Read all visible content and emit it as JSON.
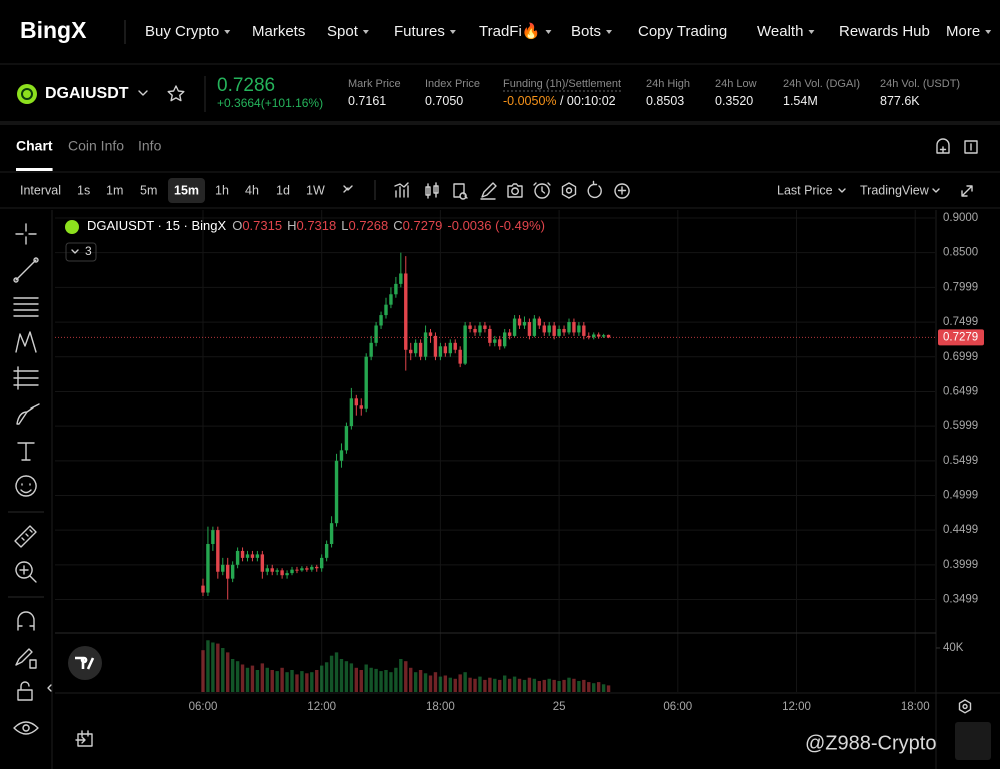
{
  "nav": {
    "logo": "BingX",
    "items": [
      {
        "label": "Buy Crypto",
        "menu": true
      },
      {
        "label": "Markets",
        "menu": false
      },
      {
        "label": "Spot",
        "menu": true
      },
      {
        "label": "Futures",
        "menu": true
      },
      {
        "label": "TradFi🔥",
        "menu": true
      },
      {
        "label": "Bots",
        "menu": true
      },
      {
        "label": "Copy Trading",
        "menu": false
      },
      {
        "label": "Wealth",
        "menu": true
      },
      {
        "label": "Rewards Hub",
        "menu": false
      },
      {
        "label": "More",
        "menu": true
      }
    ]
  },
  "ticker": {
    "symbol": "DGAIUSDT",
    "price": "0.7286",
    "change": "+0.3664(+101.16%)",
    "stats": [
      {
        "label": "Mark Price",
        "value": "0.7161"
      },
      {
        "label": "Index Price",
        "value": "0.7050"
      },
      {
        "label": "Funding (1h)/Settlement",
        "value": "-0.0050%",
        "extra": " / 00:10:02"
      },
      {
        "label": "24h High",
        "value": "0.8503"
      },
      {
        "label": "24h Low",
        "value": "0.3520"
      },
      {
        "label": "24h Vol. (DGAI)",
        "value": "1.54M"
      },
      {
        "label": "24h Vol. (USDT)",
        "value": "877.6K"
      }
    ]
  },
  "tabs": {
    "items": [
      "Chart",
      "Coin Info",
      "Info"
    ],
    "active": 0
  },
  "toolbar": {
    "interval_label": "Interval",
    "intervals": [
      "1s",
      "1m",
      "5m",
      "15m",
      "1h",
      "4h",
      "1d",
      "1W"
    ],
    "active": 3,
    "price_source": "Last Price",
    "view": "TradingView"
  },
  "watermark": "@Z988-Crypto",
  "chart_data": {
    "type": "candlestick",
    "legend": {
      "title": "DGAIUSDT · 15 · BingX",
      "ohlc": [
        {
          "label": "O",
          "value": "0.7315"
        },
        {
          "label": "H",
          "value": "0.7318"
        },
        {
          "label": "L",
          "value": "0.7268"
        },
        {
          "label": "C",
          "value": "0.7279"
        }
      ],
      "change": "-0.0036 (-0.49%)",
      "indicators": "3"
    },
    "x": [
      6,
      6.25,
      6.5,
      6.75,
      7,
      7.25,
      7.5,
      7.75,
      8,
      8.25,
      8.5,
      8.75,
      9,
      9.25,
      9.5,
      9.75,
      10,
      10.25,
      10.5,
      10.75,
      11,
      11.25,
      11.5,
      11.75,
      12,
      12.25,
      12.5,
      12.75,
      13,
      13.25,
      13.5,
      13.75,
      14,
      14.25,
      14.5,
      14.75,
      15,
      15.25,
      15.5,
      15.75,
      16,
      16.25,
      16.5,
      16.75,
      17,
      17.25,
      17.5,
      17.75,
      18,
      18.25,
      18.5,
      18.75,
      19,
      19.25,
      19.5,
      19.75,
      20,
      20.25,
      20.5,
      20.75,
      21,
      21.25,
      21.5,
      21.75,
      22,
      22.25,
      22.5,
      22.75,
      23,
      23.25,
      23.5,
      23.75,
      24,
      24.25,
      24.5,
      24.75,
      25,
      25.25,
      25.5,
      25.75,
      26,
      26.25,
      26.5
    ],
    "open": [
      0.37,
      0.36,
      0.43,
      0.45,
      0.39,
      0.4,
      0.38,
      0.4,
      0.42,
      0.41,
      0.415,
      0.41,
      0.415,
      0.39,
      0.395,
      0.39,
      0.392,
      0.385,
      0.388,
      0.393,
      0.392,
      0.395,
      0.393,
      0.397,
      0.395,
      0.41,
      0.43,
      0.46,
      0.55,
      0.565,
      0.6,
      0.64,
      0.63,
      0.625,
      0.7,
      0.72,
      0.745,
      0.76,
      0.775,
      0.79,
      0.805,
      0.82,
      0.71,
      0.705,
      0.72,
      0.7,
      0.735,
      0.73,
      0.7,
      0.715,
      0.705,
      0.72,
      0.71,
      0.69,
      0.745,
      0.74,
      0.735,
      0.745,
      0.74,
      0.72,
      0.725,
      0.715,
      0.735,
      0.73,
      0.755,
      0.745,
      0.75,
      0.73,
      0.755,
      0.745,
      0.735,
      0.745,
      0.73,
      0.74,
      0.735,
      0.75,
      0.735,
      0.745,
      0.73,
      0.728,
      0.732,
      0.729,
      0.7315
    ],
    "high": [
      0.38,
      0.455,
      0.455,
      0.455,
      0.41,
      0.41,
      0.405,
      0.425,
      0.425,
      0.42,
      0.42,
      0.42,
      0.42,
      0.4,
      0.4,
      0.395,
      0.395,
      0.392,
      0.397,
      0.397,
      0.398,
      0.398,
      0.4,
      0.4,
      0.415,
      0.435,
      0.47,
      0.56,
      0.575,
      0.605,
      0.655,
      0.645,
      0.64,
      0.705,
      0.73,
      0.75,
      0.765,
      0.785,
      0.8,
      0.815,
      0.85,
      0.845,
      0.72,
      0.725,
      0.725,
      0.745,
      0.74,
      0.735,
      0.72,
      0.72,
      0.725,
      0.725,
      0.715,
      0.75,
      0.75,
      0.745,
      0.75,
      0.75,
      0.745,
      0.73,
      0.73,
      0.74,
      0.74,
      0.76,
      0.76,
      0.758,
      0.755,
      0.76,
      0.758,
      0.75,
      0.75,
      0.75,
      0.745,
      0.745,
      0.755,
      0.755,
      0.75,
      0.75,
      0.735,
      0.735,
      0.735,
      0.733,
      0.7318
    ],
    "low": [
      0.355,
      0.355,
      0.42,
      0.38,
      0.385,
      0.35,
      0.375,
      0.395,
      0.405,
      0.405,
      0.405,
      0.405,
      0.38,
      0.385,
      0.385,
      0.385,
      0.38,
      0.38,
      0.385,
      0.388,
      0.39,
      0.39,
      0.39,
      0.39,
      0.39,
      0.405,
      0.425,
      0.455,
      0.54,
      0.56,
      0.595,
      0.615,
      0.615,
      0.62,
      0.695,
      0.715,
      0.74,
      0.755,
      0.77,
      0.785,
      0.8,
      0.68,
      0.695,
      0.7,
      0.695,
      0.695,
      0.72,
      0.695,
      0.695,
      0.7,
      0.7,
      0.705,
      0.685,
      0.688,
      0.735,
      0.73,
      0.73,
      0.735,
      0.715,
      0.715,
      0.71,
      0.712,
      0.725,
      0.728,
      0.74,
      0.74,
      0.725,
      0.728,
      0.74,
      0.73,
      0.73,
      0.725,
      0.728,
      0.73,
      0.732,
      0.73,
      0.73,
      0.725,
      0.725,
      0.725,
      0.726,
      0.727,
      0.7268
    ],
    "close": [
      0.36,
      0.43,
      0.45,
      0.39,
      0.4,
      0.38,
      0.4,
      0.42,
      0.41,
      0.415,
      0.41,
      0.415,
      0.39,
      0.395,
      0.39,
      0.392,
      0.385,
      0.388,
      0.393,
      0.392,
      0.395,
      0.393,
      0.397,
      0.395,
      0.41,
      0.43,
      0.46,
      0.55,
      0.565,
      0.6,
      0.64,
      0.63,
      0.625,
      0.7,
      0.72,
      0.745,
      0.76,
      0.775,
      0.79,
      0.805,
      0.82,
      0.71,
      0.705,
      0.72,
      0.7,
      0.735,
      0.73,
      0.7,
      0.715,
      0.705,
      0.72,
      0.71,
      0.69,
      0.745,
      0.74,
      0.735,
      0.745,
      0.74,
      0.72,
      0.725,
      0.715,
      0.735,
      0.73,
      0.755,
      0.745,
      0.75,
      0.73,
      0.755,
      0.745,
      0.735,
      0.745,
      0.73,
      0.74,
      0.735,
      0.75,
      0.735,
      0.745,
      0.73,
      0.728,
      0.732,
      0.729,
      0.731,
      0.7279
    ],
    "volume": [
      38000,
      47000,
      45000,
      44000,
      40000,
      36000,
      30000,
      28000,
      25000,
      22000,
      24000,
      20000,
      26000,
      22000,
      20000,
      19000,
      22000,
      18000,
      20000,
      16000,
      19000,
      17000,
      18000,
      20000,
      24000,
      27000,
      33000,
      36000,
      30000,
      28000,
      26000,
      22000,
      20000,
      25000,
      22000,
      21000,
      19000,
      20000,
      18000,
      22000,
      30000,
      28000,
      22000,
      18000,
      20000,
      17000,
      15000,
      18000,
      14000,
      15000,
      13000,
      12000,
      16000,
      18000,
      13000,
      12000,
      14000,
      11000,
      13000,
      12000,
      11000,
      15000,
      12000,
      14000,
      12000,
      11000,
      13000,
      12000,
      10000,
      11000,
      12000,
      11000,
      10000,
      11000,
      13000,
      12000,
      10000,
      11000,
      9000,
      8000,
      9000,
      7000,
      6000
    ],
    "up_color": "#25a750",
    "down_color": "#e2454c",
    "xlim": [
      -1.48,
      43.0
    ],
    "xticks": [
      {
        "value": 6,
        "label": "06:00"
      },
      {
        "value": 12,
        "label": "12:00"
      },
      {
        "value": 18,
        "label": "18:00"
      },
      {
        "value": 24,
        "label": "25"
      },
      {
        "value": 30,
        "label": "06:00"
      },
      {
        "value": 36,
        "label": "12:00"
      },
      {
        "value": 42,
        "label": "18:00"
      }
    ],
    "ylim": [
      0.306,
      0.9115
    ],
    "yticks": [
      {
        "value": 0.9,
        "label": "0.9000"
      },
      {
        "value": 0.85,
        "label": "0.8500"
      },
      {
        "value": 0.7999,
        "label": "0.7999"
      },
      {
        "value": 0.7499,
        "label": "0.7499"
      },
      {
        "value": 0.6999,
        "label": "0.6999"
      },
      {
        "value": 0.6499,
        "label": "0.6499"
      },
      {
        "value": 0.5999,
        "label": "0.5999"
      },
      {
        "value": 0.5499,
        "label": "0.5499"
      },
      {
        "value": 0.4999,
        "label": "0.4999"
      },
      {
        "value": 0.4499,
        "label": "0.4499"
      },
      {
        "value": 0.3999,
        "label": "0.3999"
      },
      {
        "value": 0.3499,
        "label": "0.3499"
      }
    ],
    "vlim": [
      0,
      51800
    ],
    "vticks": [
      {
        "value": 40000,
        "label": "40K"
      }
    ],
    "last_price": {
      "value": 0.7279,
      "label": "0.7279"
    },
    "grid": true
  }
}
